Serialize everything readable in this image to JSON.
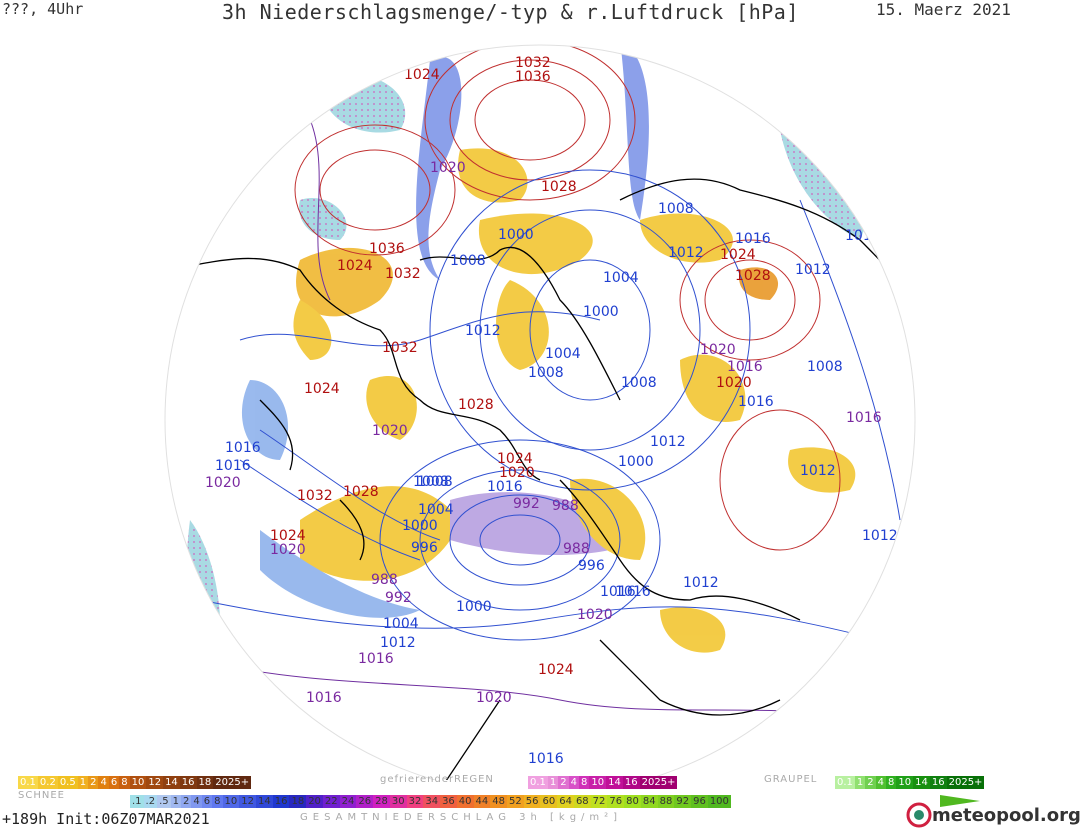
{
  "header": {
    "left": "???, 4Uhr",
    "title": "3h Niederschlagsmenge/-typ & r.Luftdruck [hPa]",
    "date": "15. Maerz 2021"
  },
  "colors": {
    "high_pressure": "#b01010",
    "low_pressure": "#2040d0",
    "mid_pressure": "#7a2aa0",
    "rain": "#f0c020",
    "snow": "#8cc8d8",
    "coast": "#000000"
  },
  "isobars": [
    {
      "label": "1020",
      "kind": "mid"
    },
    {
      "label": "1024",
      "kind": "high"
    },
    {
      "label": "1032",
      "kind": "high"
    },
    {
      "label": "1036",
      "kind": "high"
    },
    {
      "label": "1016",
      "kind": "low"
    },
    {
      "label": "1020",
      "kind": "mid"
    },
    {
      "label": "1028",
      "kind": "high"
    },
    {
      "label": "1020",
      "kind": "mid"
    },
    {
      "label": "1036",
      "kind": "high"
    },
    {
      "label": "1024",
      "kind": "high"
    },
    {
      "label": "1032",
      "kind": "high"
    },
    {
      "label": "1008",
      "kind": "low"
    },
    {
      "label": "1000",
      "kind": "low"
    },
    {
      "label": "1008",
      "kind": "low"
    },
    {
      "label": "1012",
      "kind": "low"
    },
    {
      "label": "1016",
      "kind": "low"
    },
    {
      "label": "1024",
      "kind": "high"
    },
    {
      "label": "1028",
      "kind": "high"
    },
    {
      "label": "1012",
      "kind": "low"
    },
    {
      "label": "1004",
      "kind": "low"
    },
    {
      "label": "1016",
      "kind": "low"
    },
    {
      "label": "1000",
      "kind": "low"
    },
    {
      "label": "1012",
      "kind": "low"
    },
    {
      "label": "1032",
      "kind": "high"
    },
    {
      "label": "1004",
      "kind": "low"
    },
    {
      "label": "1008",
      "kind": "low"
    },
    {
      "label": "1016",
      "kind": "mid"
    },
    {
      "label": "1020",
      "kind": "mid"
    },
    {
      "label": "1016",
      "kind": "low"
    },
    {
      "label": "1020",
      "kind": "high"
    },
    {
      "label": "1008",
      "kind": "low"
    },
    {
      "label": "1024",
      "kind": "high"
    },
    {
      "label": "1028",
      "kind": "high"
    },
    {
      "label": "1008",
      "kind": "low"
    },
    {
      "label": "1020",
      "kind": "mid"
    },
    {
      "label": "1016",
      "kind": "mid"
    },
    {
      "label": "1016",
      "kind": "low"
    },
    {
      "label": "1012",
      "kind": "low"
    },
    {
      "label": "1016",
      "kind": "low"
    },
    {
      "label": "1020",
      "kind": "mid"
    },
    {
      "label": "1024",
      "kind": "high"
    },
    {
      "label": "1020",
      "kind": "high"
    },
    {
      "label": "1008",
      "kind": "low"
    },
    {
      "label": "1000",
      "kind": "low"
    },
    {
      "label": "1016",
      "kind": "low"
    },
    {
      "label": "1012",
      "kind": "low"
    },
    {
      "label": "1032",
      "kind": "high"
    },
    {
      "label": "1028",
      "kind": "high"
    },
    {
      "label": "1008",
      "kind": "low"
    },
    {
      "label": "1004",
      "kind": "low"
    },
    {
      "label": "992",
      "kind": "mid"
    },
    {
      "label": "988",
      "kind": "mid"
    },
    {
      "label": "1000",
      "kind": "low"
    },
    {
      "label": "996",
      "kind": "low"
    },
    {
      "label": "1024",
      "kind": "high"
    },
    {
      "label": "1020",
      "kind": "mid"
    },
    {
      "label": "988",
      "kind": "mid"
    },
    {
      "label": "996",
      "kind": "low"
    },
    {
      "label": "1016",
      "kind": "low"
    },
    {
      "label": "1012",
      "kind": "low"
    },
    {
      "label": "988",
      "kind": "mid"
    },
    {
      "label": "992",
      "kind": "mid"
    },
    {
      "label": "1000",
      "kind": "low"
    },
    {
      "label": "1004",
      "kind": "low"
    },
    {
      "label": "1012",
      "kind": "low"
    },
    {
      "label": "1016",
      "kind": "mid"
    },
    {
      "label": "1020",
      "kind": "mid"
    },
    {
      "label": "1016",
      "kind": "low"
    },
    {
      "label": "1024",
      "kind": "high"
    },
    {
      "label": "1020",
      "kind": "mid"
    },
    {
      "label": "1016",
      "kind": "mid"
    },
    {
      "label": "1016",
      "kind": "low"
    },
    {
      "label": "1012",
      "kind": "low"
    }
  ],
  "legend": {
    "rain_scale": {
      "values": [
        "0.1",
        "0.2",
        "0.5",
        "1",
        "2",
        "4",
        "6",
        "8",
        "10",
        "12",
        "14",
        "16",
        "18",
        "2025+"
      ],
      "colors": [
        "#f8d848",
        "#f4c830",
        "#f0c020",
        "#f0b020",
        "#e89818",
        "#e08010",
        "#d87010",
        "#c86010",
        "#b05010",
        "#a04810",
        "#904010",
        "#803810",
        "#703010",
        "#602810"
      ]
    },
    "freezing_rain_label": "gefrierenderREGEN",
    "freezing_rain_scale": {
      "values": [
        "0.1",
        "1",
        "2",
        "4",
        "8",
        "10",
        "14",
        "16",
        "2025+"
      ],
      "colors": [
        "#f0a0e0",
        "#e890d8",
        "#e070d0",
        "#d850c8",
        "#d030b8",
        "#c820a8",
        "#c01098",
        "#b00888",
        "#a00070"
      ]
    },
    "graupel_label": "GRAUPEL",
    "graupel_scale": {
      "values": [
        "0.1",
        "1",
        "2",
        "4",
        "8",
        "10",
        "14",
        "16",
        "2025+"
      ],
      "colors": [
        "#b8f0a0",
        "#90e070",
        "#70d050",
        "#50c030",
        "#30b020",
        "#20a018",
        "#189010",
        "#108010",
        "#087008"
      ]
    },
    "snow_label": "SCHNEE",
    "total_scale": {
      "values": [
        ".1",
        ".2",
        ".5",
        "1",
        "2",
        "4",
        "6",
        "8",
        "10",
        "12",
        "14",
        "16",
        "18",
        "20",
        "22",
        "24",
        "26",
        "28",
        "30",
        "32",
        "34",
        "36",
        "40",
        "44",
        "48",
        "52",
        "56",
        "60",
        "64",
        "68",
        "72",
        "76",
        "80",
        "84",
        "88",
        "92",
        "96",
        "100"
      ],
      "colors": [
        "#a0e0e8",
        "#a8d8f0",
        "#b0c8f0",
        "#a0b8f0",
        "#90a8f0",
        "#8098f0",
        "#7088f0",
        "#6078f0",
        "#5068e8",
        "#4058e0",
        "#3048d8",
        "#2038d0",
        "#2828c0",
        "#5020c8",
        "#7020d0",
        "#9020d0",
        "#b020c8",
        "#d020c0",
        "#e030a0",
        "#f04080",
        "#f05060",
        "#f06040",
        "#f07030",
        "#f08028",
        "#f09020",
        "#f0a020",
        "#f0b020",
        "#e8c020",
        "#e0d020",
        "#d0d820",
        "#c0e020",
        "#b0e020",
        "#a0e020",
        "#90d820",
        "#80d020",
        "#70c820",
        "#60c020",
        "#50b820"
      ]
    },
    "total_label": "GESAMTNIEDERSCHLAG 3h [kg/m²]"
  },
  "footer": {
    "init": "+189h Init:06Z07MAR2021",
    "logo": "meteopool.org"
  }
}
